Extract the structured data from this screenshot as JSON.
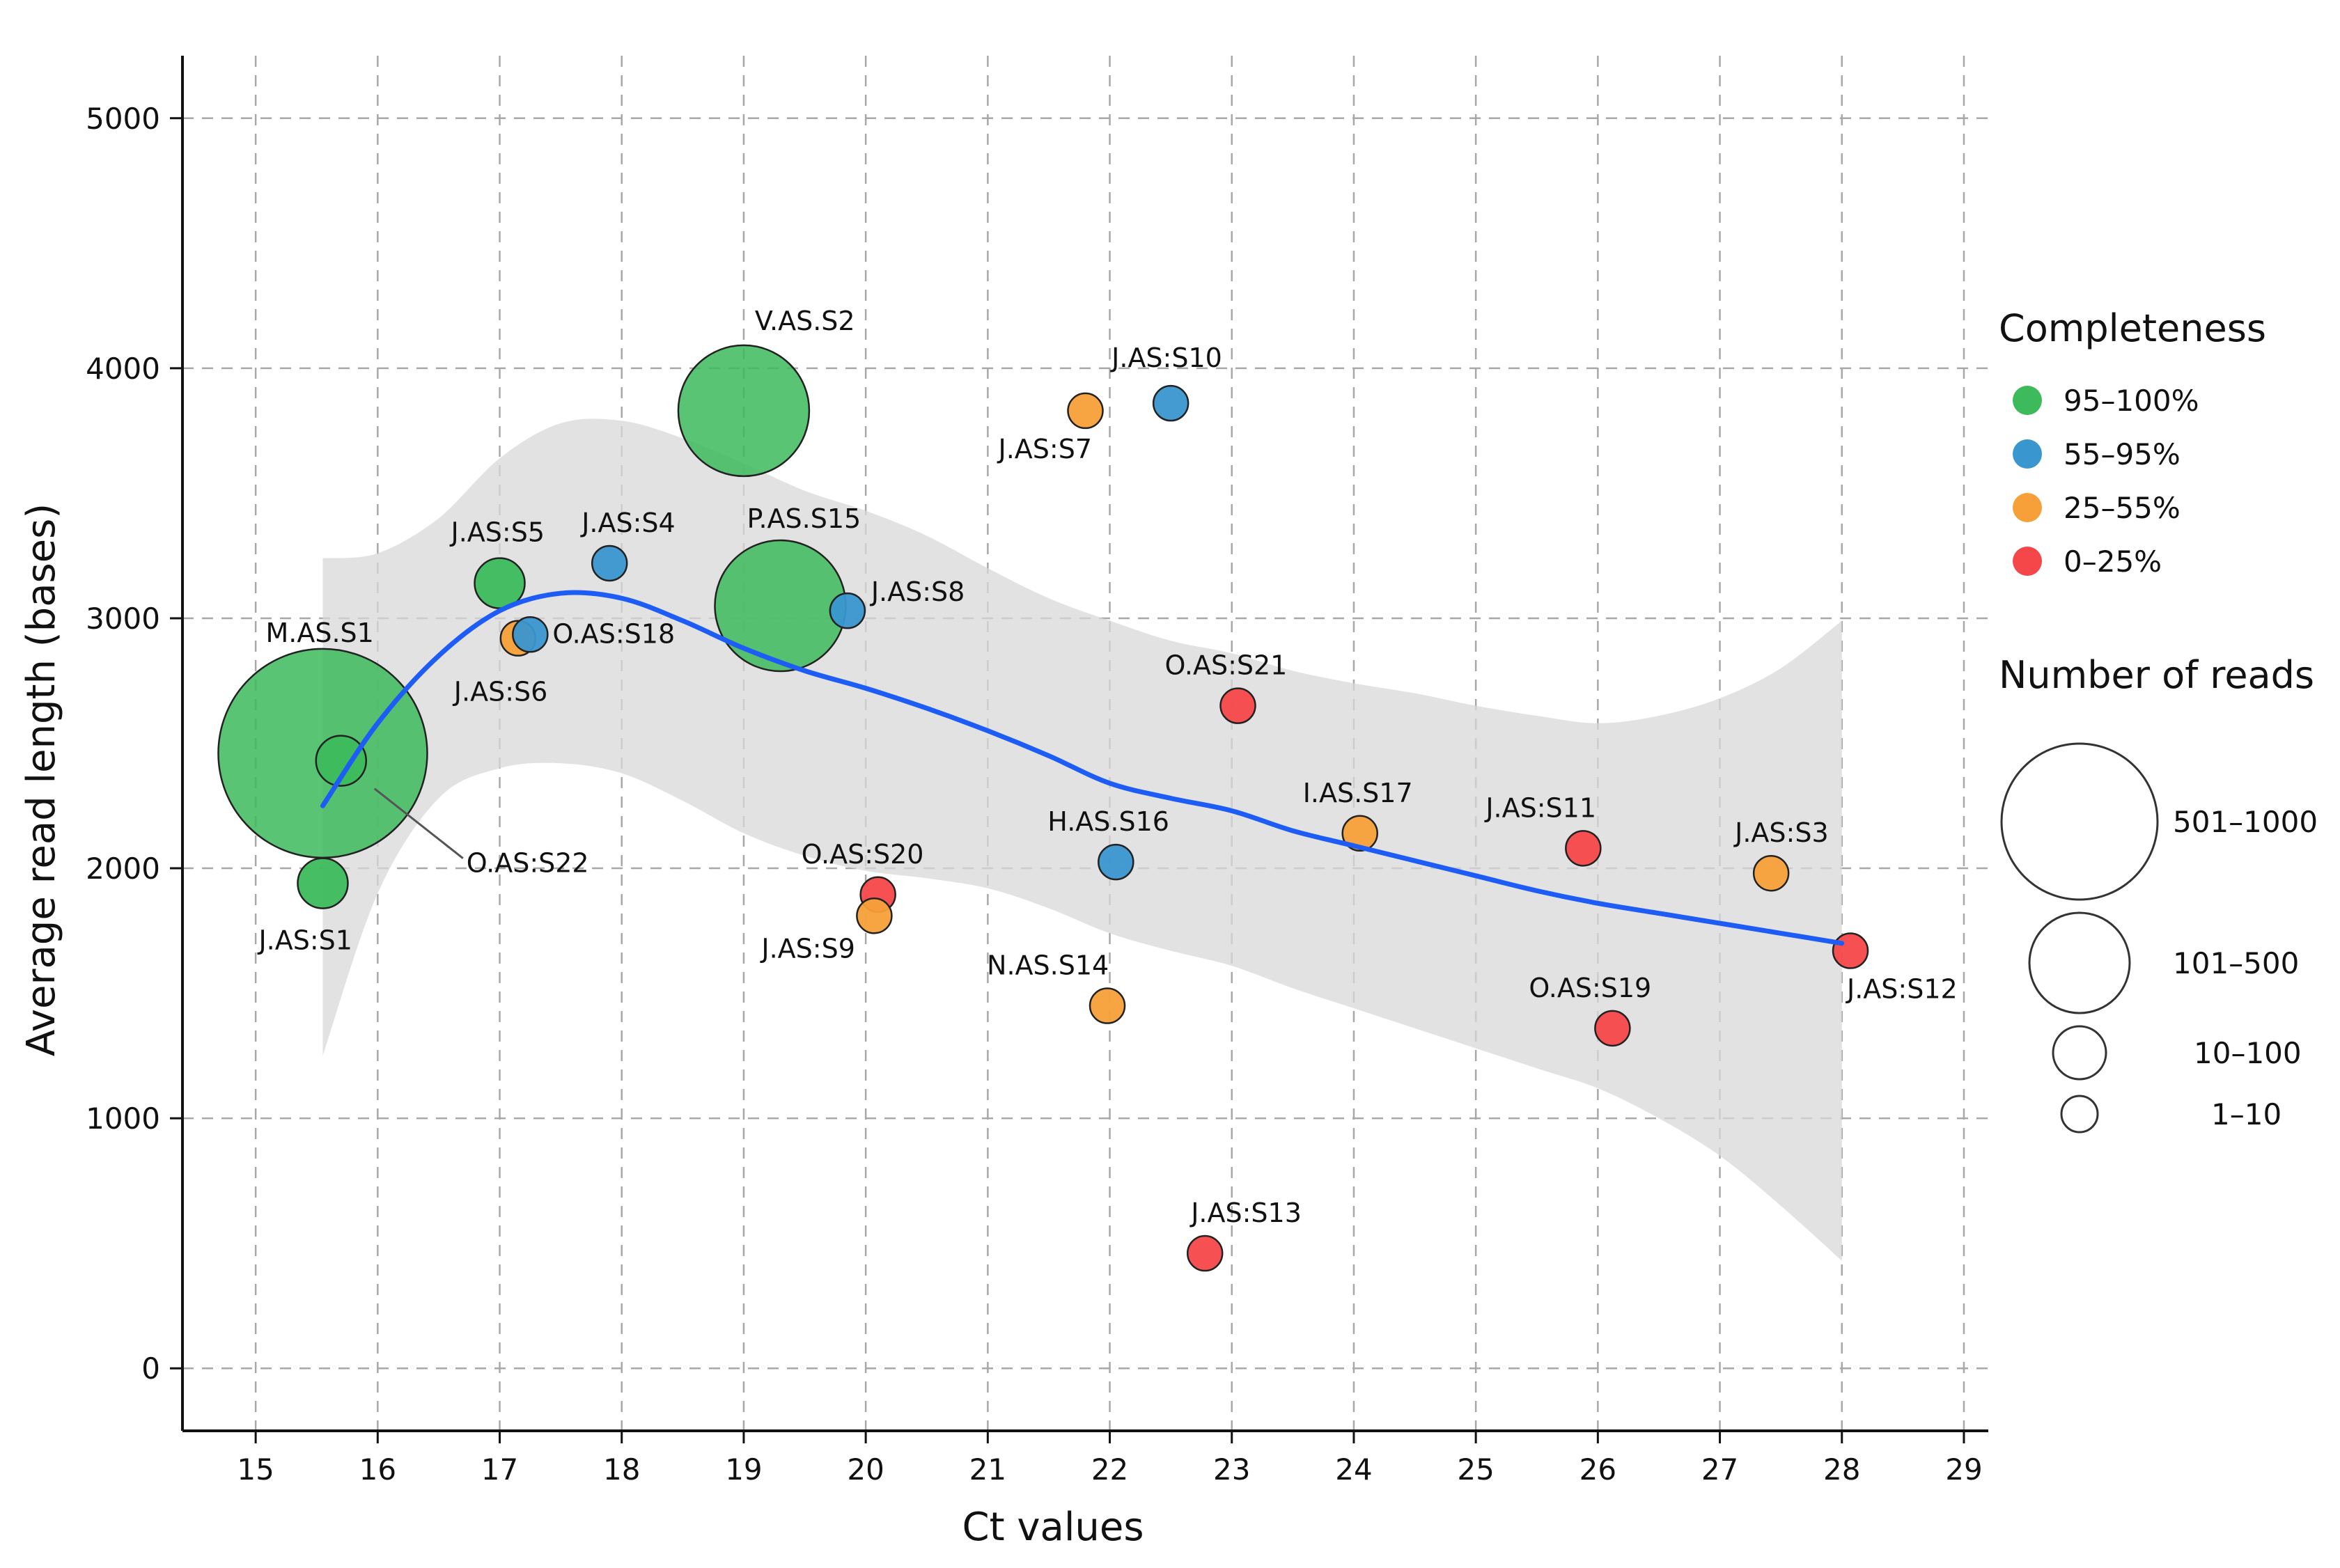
{
  "chart_data": {
    "type": "scatter",
    "title": "",
    "xlabel": "Ct values",
    "ylabel": "Average read length (bases)",
    "xlim": [
      14.4,
      29.2
    ],
    "ylim": [
      -250,
      5250
    ],
    "xticks": [
      "15",
      "16",
      "17",
      "18",
      "19",
      "20",
      "21",
      "22",
      "23",
      "24",
      "25",
      "26",
      "27",
      "28",
      "29"
    ],
    "yticks": [
      "0",
      "1000",
      "2000",
      "3000",
      "4000",
      "5000"
    ],
    "grid": true,
    "colors": {
      "95-100": "#3cba5c",
      "55-95": "#3a96cf",
      "25-55": "#f7a039",
      "0-25": "#f5474a",
      "trend": "#1d5cf5",
      "ribbon": "#d8d8d8"
    },
    "completeness_legend": {
      "title": "Completeness",
      "entries": [
        {
          "key": "95-100",
          "label": "95–100%"
        },
        {
          "key": "55-95",
          "label": "55–95%"
        },
        {
          "key": "25-55",
          "label": "25–55%"
        },
        {
          "key": "0-25",
          "label": "0–25%"
        }
      ]
    },
    "reads_legend": {
      "title": "Number of reads",
      "entries": [
        {
          "key": "L",
          "label": "501–1000"
        },
        {
          "key": "M",
          "label": "101–500"
        },
        {
          "key": "S",
          "label": "10–100"
        },
        {
          "key": "XS",
          "label": "1–10"
        }
      ]
    },
    "points": [
      {
        "label": "M.AS.S1",
        "x": 15.55,
        "y": 2460,
        "completeness": "95-100",
        "reads": "L"
      },
      {
        "label": "O.AS:S22",
        "x": 15.7,
        "y": 2430,
        "completeness": "95-100",
        "reads": "S"
      },
      {
        "label": "J.AS:S1",
        "x": 15.55,
        "y": 1940,
        "completeness": "95-100",
        "reads": "S"
      },
      {
        "label": "J.AS:S5",
        "x": 17.0,
        "y": 3140,
        "completeness": "95-100",
        "reads": "S"
      },
      {
        "label": "J.AS:S6",
        "x": 17.15,
        "y": 2920,
        "completeness": "25-55",
        "reads": "XS"
      },
      {
        "label": "O.AS:S18",
        "x": 17.25,
        "y": 2935,
        "completeness": "55-95",
        "reads": "XS"
      },
      {
        "label": "J.AS:S4",
        "x": 17.9,
        "y": 3220,
        "completeness": "55-95",
        "reads": "XS"
      },
      {
        "label": "V.AS.S2",
        "x": 19.0,
        "y": 3830,
        "completeness": "95-100",
        "reads": "M"
      },
      {
        "label": "P.AS.S15",
        "x": 19.3,
        "y": 3050,
        "completeness": "95-100",
        "reads": "M"
      },
      {
        "label": "J.AS:S8",
        "x": 19.85,
        "y": 3030,
        "completeness": "55-95",
        "reads": "XS"
      },
      {
        "label": "J.AS:S7",
        "x": 21.8,
        "y": 3830,
        "completeness": "25-55",
        "reads": "XS"
      },
      {
        "label": "J.AS:S10",
        "x": 22.5,
        "y": 3860,
        "completeness": "55-95",
        "reads": "XS"
      },
      {
        "label": "O.AS:S21",
        "x": 23.05,
        "y": 2650,
        "completeness": "0-25",
        "reads": "XS"
      },
      {
        "label": "O.AS:S20",
        "x": 20.1,
        "y": 1895,
        "completeness": "0-25",
        "reads": "XS"
      },
      {
        "label": "J.AS:S9",
        "x": 20.07,
        "y": 1810,
        "completeness": "25-55",
        "reads": "XS"
      },
      {
        "label": "H.AS.S16",
        "x": 22.05,
        "y": 2025,
        "completeness": "55-95",
        "reads": "XS"
      },
      {
        "label": "N.AS.S14",
        "x": 21.98,
        "y": 1450,
        "completeness": "25-55",
        "reads": "XS"
      },
      {
        "label": "I.AS.S17",
        "x": 24.05,
        "y": 2140,
        "completeness": "25-55",
        "reads": "XS"
      },
      {
        "label": "J.AS:S11",
        "x": 25.88,
        "y": 2080,
        "completeness": "0-25",
        "reads": "XS"
      },
      {
        "label": "J.AS:S3",
        "x": 27.42,
        "y": 1980,
        "completeness": "25-55",
        "reads": "XS"
      },
      {
        "label": "O.AS:S19",
        "x": 26.12,
        "y": 1360,
        "completeness": "0-25",
        "reads": "XS"
      },
      {
        "label": "J.AS:S12",
        "x": 28.07,
        "y": 1670,
        "completeness": "0-25",
        "reads": "XS"
      },
      {
        "label": "J.AS:S13",
        "x": 22.78,
        "y": 460,
        "completeness": "0-25",
        "reads": "XS"
      }
    ],
    "trend": {
      "x": [
        15.55,
        16.0,
        16.5,
        17.0,
        17.5,
        18.0,
        18.5,
        19.0,
        19.5,
        20.0,
        20.5,
        21.0,
        21.5,
        22.0,
        22.5,
        23.0,
        23.5,
        24.0,
        24.5,
        25.0,
        25.5,
        26.0,
        26.5,
        27.0,
        27.5,
        28.0
      ],
      "y": [
        2250,
        2580,
        2850,
        3030,
        3100,
        3080,
        2990,
        2880,
        2790,
        2720,
        2640,
        2550,
        2450,
        2340,
        2280,
        2230,
        2150,
        2090,
        2030,
        1970,
        1910,
        1860,
        1820,
        1780,
        1740,
        1700
      ],
      "lower": [
        1250,
        1900,
        2280,
        2400,
        2420,
        2380,
        2270,
        2140,
        2050,
        1990,
        1960,
        1920,
        1840,
        1740,
        1670,
        1610,
        1520,
        1440,
        1360,
        1280,
        1200,
        1120,
        1000,
        850,
        650,
        430
      ],
      "upper": [
        3240,
        3260,
        3400,
        3640,
        3780,
        3790,
        3720,
        3620,
        3510,
        3430,
        3330,
        3200,
        3080,
        2990,
        2910,
        2860,
        2790,
        2740,
        2700,
        2650,
        2610,
        2580,
        2610,
        2680,
        2800,
        2990
      ]
    }
  }
}
